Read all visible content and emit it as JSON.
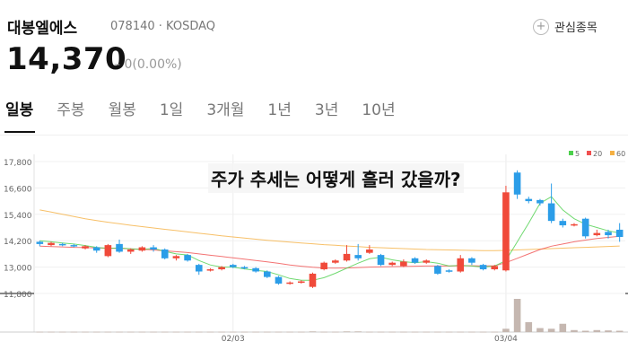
{
  "stock": {
    "name": "대봉엘에스",
    "code_market": "078140 · KOSDAQ",
    "price": "14,370",
    "change": "– 0(0.00%)",
    "watch_label": "관심종목"
  },
  "tabs": [
    {
      "label": "일봉",
      "active": true
    },
    {
      "label": "주봉",
      "active": false
    },
    {
      "label": "월봉",
      "active": false
    },
    {
      "label": "1일",
      "active": false
    },
    {
      "label": "3개월",
      "active": false
    },
    {
      "label": "1년",
      "active": false
    },
    {
      "label": "3년",
      "active": false
    },
    {
      "label": "10년",
      "active": false
    }
  ],
  "overlay_title": "주가 추세는 어떻게 흘러 갔을까?",
  "colors": {
    "up": "#f04a3a",
    "down": "#2b9de8",
    "ma5": "#4cd04c",
    "ma20": "#f05050",
    "ma60": "#f5b042",
    "volume": "#c5b7b0"
  },
  "chart_data": {
    "type": "candlestick",
    "y_ticks": [
      17800,
      16600,
      15400,
      14200,
      13000,
      11800
    ],
    "y_tick_labels": [
      "17,800",
      "16,600",
      "15,400",
      "14,200",
      "13,000",
      "11,800"
    ],
    "ylim": [
      11800,
      17800
    ],
    "x_labels": [
      {
        "label": "02/03",
        "index": 17
      },
      {
        "label": "03/04",
        "index": 41
      }
    ],
    "legend": [
      {
        "label": "5",
        "color": "#4cd04c"
      },
      {
        "label": "20",
        "color": "#f05050"
      },
      {
        "label": "60",
        "color": "#f5b042"
      }
    ],
    "candles": [
      [
        14150,
        14050,
        14200,
        13950
      ],
      [
        14000,
        14100,
        14150,
        13950
      ],
      [
        14050,
        14000,
        14100,
        13950
      ],
      [
        14000,
        13950,
        14050,
        13900
      ],
      [
        13850,
        13950,
        14000,
        13800
      ],
      [
        13900,
        13750,
        13950,
        13650
      ],
      [
        13500,
        14000,
        14050,
        13450
      ],
      [
        14050,
        13700,
        14250,
        13650
      ],
      [
        13700,
        13800,
        13850,
        13600
      ],
      [
        13750,
        13900,
        13950,
        13700
      ],
      [
        13900,
        13800,
        14000,
        13700
      ],
      [
        13800,
        13400,
        13850,
        13350
      ],
      [
        13400,
        13500,
        13550,
        13300
      ],
      [
        13550,
        13300,
        13600,
        13250
      ],
      [
        13100,
        12800,
        13150,
        12650
      ],
      [
        12850,
        12900,
        12950,
        12800
      ],
      [
        12900,
        13000,
        13050,
        12850
      ],
      [
        13100,
        13000,
        13150,
        12950
      ],
      [
        13000,
        12950,
        13050,
        12900
      ],
      [
        12950,
        12800,
        13000,
        12750
      ],
      [
        12800,
        12550,
        12850,
        12500
      ],
      [
        12550,
        12250,
        12600,
        12200
      ],
      [
        12250,
        12300,
        12350,
        12200
      ],
      [
        12300,
        12350,
        12400,
        12250
      ],
      [
        12100,
        12700,
        12750,
        12050
      ],
      [
        12900,
        13200,
        13250,
        12850
      ],
      [
        13200,
        13300,
        13350,
        13150
      ],
      [
        13300,
        13600,
        14000,
        13250
      ],
      [
        13550,
        13400,
        14050,
        13300
      ],
      [
        13650,
        13800,
        14000,
        13600
      ],
      [
        13550,
        13100,
        13600,
        13050
      ],
      [
        13100,
        13200,
        13250,
        13050
      ],
      [
        13050,
        13250,
        13350,
        13000
      ],
      [
        13400,
        13200,
        13450,
        13150
      ],
      [
        13200,
        13300,
        13350,
        13150
      ],
      [
        13050,
        12700,
        13100,
        12650
      ],
      [
        12850,
        12800,
        12900,
        12750
      ],
      [
        12800,
        13400,
        13550,
        12750
      ],
      [
        13400,
        13200,
        13450,
        13100
      ],
      [
        13100,
        12900,
        13150,
        12850
      ],
      [
        12900,
        13050,
        13100,
        12850
      ],
      [
        12850,
        16400,
        16700,
        12800
      ],
      [
        17300,
        16300,
        17400,
        16100
      ],
      [
        16100,
        16000,
        16200,
        15900
      ],
      [
        16050,
        15900,
        16100,
        15800
      ],
      [
        15900,
        15100,
        16800,
        15000
      ],
      [
        15100,
        14900,
        15200,
        14800
      ],
      [
        14900,
        14950,
        15000,
        14850
      ],
      [
        15200,
        14400,
        15250,
        14300
      ],
      [
        14450,
        14550,
        14700,
        14400
      ],
      [
        14600,
        14450,
        14700,
        14300
      ],
      [
        14700,
        14370,
        15000,
        14150
      ]
    ],
    "ma5": [
      14200,
      14150,
      14100,
      14050,
      13980,
      13900,
      13850,
      13870,
      13830,
      13800,
      13850,
      13720,
      13600,
      13550,
      13300,
      13100,
      13000,
      13000,
      12920,
      12850,
      12800,
      12650,
      12480,
      12400,
      12400,
      12520,
      12720,
      12950,
      13180,
      13380,
      13450,
      13330,
      13250,
      13200,
      13250,
      13180,
      13050,
      13080,
      13050,
      13000,
      13050,
      13300,
      14150,
      15000,
      15900,
      16200,
      15600,
      15200,
      14950,
      14800,
      14650,
      14550
    ],
    "ma20": [
      13950,
      13930,
      13920,
      13900,
      13890,
      13870,
      13860,
      13850,
      13830,
      13810,
      13780,
      13740,
      13700,
      13660,
      13600,
      13540,
      13480,
      13420,
      13360,
      13300,
      13240,
      13170,
      13100,
      13040,
      12990,
      12960,
      12950,
      12960,
      12980,
      13000,
      13010,
      13020,
      13030,
      13040,
      13050,
      13050,
      13050,
      13060,
      13060,
      13050,
      13060,
      13200,
      13400,
      13600,
      13800,
      13950,
      14050,
      14150,
      14230,
      14300,
      14350,
      14400
    ],
    "ma60": [
      15600,
      15500,
      15400,
      15300,
      15200,
      15120,
      15040,
      14970,
      14900,
      14840,
      14780,
      14720,
      14660,
      14600,
      14540,
      14480,
      14420,
      14370,
      14320,
      14270,
      14220,
      14180,
      14140,
      14100,
      14060,
      14020,
      13990,
      13960,
      13930,
      13900,
      13880,
      13860,
      13840,
      13820,
      13800,
      13790,
      13780,
      13770,
      13760,
      13750,
      13750,
      13760,
      13780,
      13800,
      13820,
      13840,
      13860,
      13880,
      13900,
      13920,
      13940,
      13960
    ],
    "volume": [
      1,
      1,
      1,
      1,
      1,
      1,
      1,
      1,
      1,
      1,
      1,
      1,
      1,
      1,
      1,
      1,
      1,
      1,
      1,
      1,
      1,
      1,
      1,
      1,
      2,
      1,
      1,
      2,
      2,
      1,
      1,
      1,
      1,
      1,
      1,
      1,
      1,
      1,
      1,
      1,
      1,
      10,
      100,
      30,
      12,
      10,
      25,
      6,
      4,
      6,
      5,
      4
    ]
  }
}
